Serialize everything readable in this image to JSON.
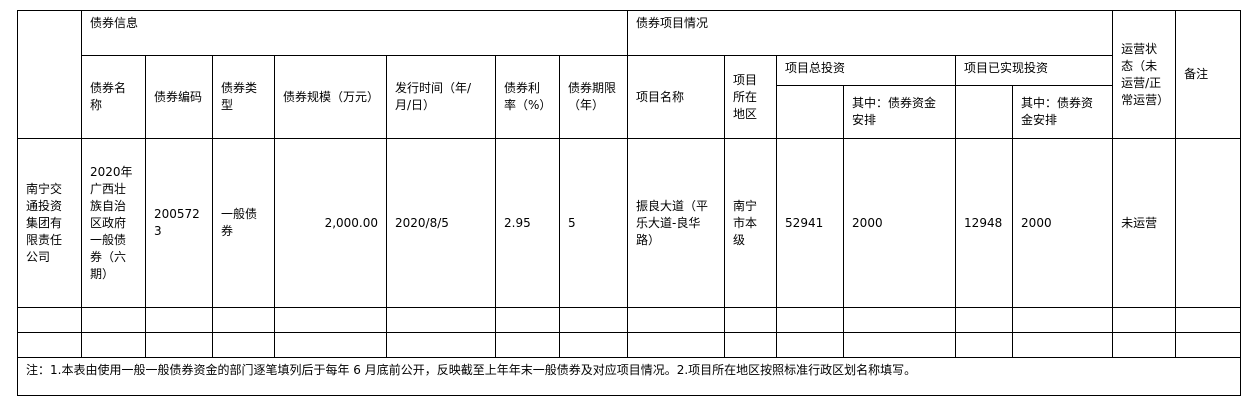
{
  "header": {
    "bond_info": "债券信息",
    "project_info": "债券项目情况",
    "bond_name": "债券名称",
    "bond_code": "债券编码",
    "bond_type": "债券类型",
    "bond_scale": "债券规模（万元）",
    "issue_date": "发行时间（年/月/日）",
    "bond_rate": "债券利率（%）",
    "bond_term": "债券期限（年）",
    "project_name": "项目名称",
    "project_region": "项目所在地区",
    "total_investment": "项目总投资",
    "total_bond_part": "其中：债券资金安排",
    "realized_investment": "项目已实现投资",
    "realized_bond_part": "其中：债券资金安排",
    "status": "运营状态（未运营/正常运营）",
    "remark": "备注"
  },
  "row": {
    "unit": "南宁交通投资集团有限责任公司",
    "bond_name": "2020年广西壮族自治区政府一般债券（六期）",
    "bond_code": "2005723",
    "bond_type": "一般债券",
    "bond_scale": "2,000.00",
    "issue_date": "2020/8/5",
    "bond_rate": "2.95",
    "bond_term": "5",
    "project_name": "振良大道（平乐大道-良华路）",
    "project_region": "南宁市本级",
    "total_investment": "52941",
    "total_bond_part": "2000",
    "realized_investment": "12948",
    "realized_bond_part": "2000",
    "status": "未运营",
    "remark": ""
  },
  "note": "注：1.本表由使用一般一般债券资金的部门逐笔填列后于每年 6 月底前公开，反映截至上年年末一般债券及对应项目情况。2.项目所在地区按照标准行政区划名称填写。"
}
